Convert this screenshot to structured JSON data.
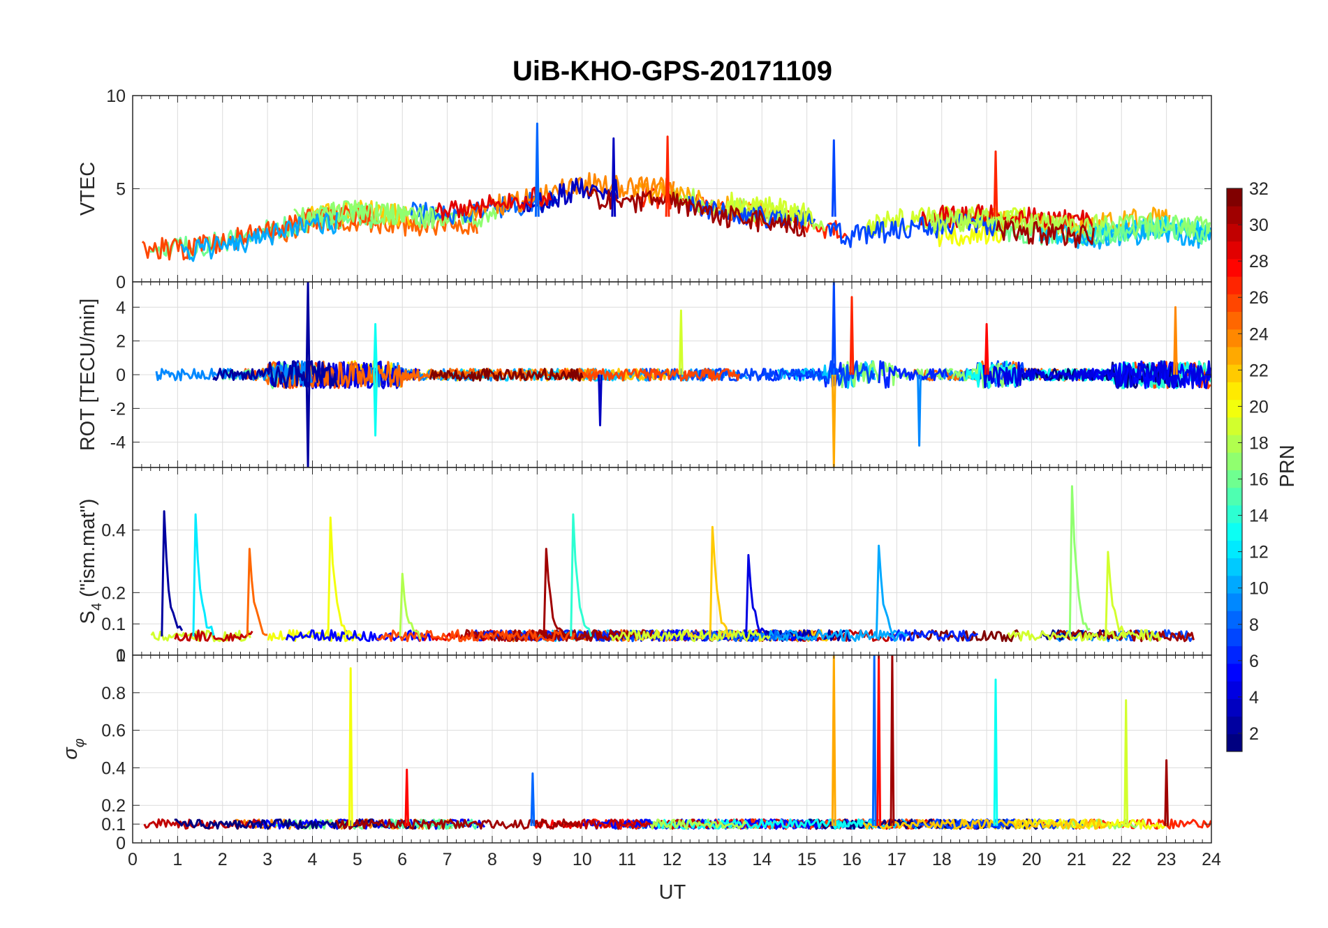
{
  "figure": {
    "title": "UiB-KHO-GPS-20171109",
    "xlabel": "UT"
  },
  "colorbar": {
    "label": "PRN",
    "range": [
      1,
      32
    ],
    "ticks": [
      "2",
      "4",
      "6",
      "8",
      "10",
      "12",
      "14",
      "16",
      "18",
      "20",
      "22",
      "24",
      "26",
      "28",
      "30",
      "32"
    ],
    "colormap": "jet"
  },
  "chart_data": [
    {
      "type": "line",
      "panel": "VTEC",
      "ylabel": "VTEC",
      "xlim": [
        0,
        24
      ],
      "ylim": [
        0,
        10
      ],
      "yticks": [
        "0",
        "5",
        "10"
      ],
      "xticks": [
        "0",
        "1",
        "2",
        "3",
        "4",
        "5",
        "6",
        "7",
        "8",
        "9",
        "10",
        "11",
        "12",
        "13",
        "14",
        "15",
        "16",
        "17",
        "18",
        "19",
        "20",
        "21",
        "22",
        "23",
        "24"
      ],
      "grid": true,
      "series_note_colors": "one line per satellite PRN 1-32, coloured by PRN",
      "envelope_x": [
        0,
        1,
        2,
        3,
        4,
        5,
        6,
        7,
        8,
        9,
        10,
        11,
        12,
        13,
        14,
        15,
        16,
        17,
        18,
        19,
        20,
        21,
        22,
        23,
        24
      ],
      "envelope_y": [
        2.2,
        2.0,
        2.4,
        3.0,
        3.6,
        3.8,
        3.6,
        3.4,
        3.6,
        4.0,
        4.8,
        4.6,
        4.5,
        3.8,
        3.5,
        3.2,
        2.4,
        2.8,
        3.0,
        3.1,
        2.9,
        2.7,
        3.0,
        3.2,
        2.8
      ],
      "peaks": [
        {
          "x": 9.0,
          "y": 8.5,
          "prn": 8
        },
        {
          "x": 10.7,
          "y": 7.7,
          "prn": 3
        },
        {
          "x": 11.9,
          "y": 7.8,
          "prn": 27
        },
        {
          "x": 15.6,
          "y": 7.6,
          "prn": 7
        },
        {
          "x": 19.2,
          "y": 7.0,
          "prn": 27
        }
      ]
    },
    {
      "type": "line",
      "panel": "ROT",
      "ylabel": "ROT [TECU/min]",
      "xlim": [
        0,
        24
      ],
      "ylim": [
        -5.5,
        5.5
      ],
      "yticks": [
        "-4",
        "-2",
        "0",
        "2",
        "4"
      ],
      "grid": true,
      "spikes": [
        {
          "x": 3.9,
          "y": 5.5,
          "prn": 2
        },
        {
          "x": 3.9,
          "y": -5.5,
          "prn": 2
        },
        {
          "x": 5.4,
          "y": 3.0,
          "prn": 13
        },
        {
          "x": 5.4,
          "y": -3.6,
          "prn": 13
        },
        {
          "x": 10.4,
          "y": -3.0,
          "prn": 3
        },
        {
          "x": 12.2,
          "y": 3.8,
          "prn": 19
        },
        {
          "x": 15.6,
          "y": 5.5,
          "prn": 7
        },
        {
          "x": 15.6,
          "y": -5.5,
          "prn": 23
        },
        {
          "x": 16.0,
          "y": 4.6,
          "prn": 27
        },
        {
          "x": 17.5,
          "y": -4.2,
          "prn": 9
        },
        {
          "x": 19.0,
          "y": 3.0,
          "prn": 28
        },
        {
          "x": 23.2,
          "y": 4.0,
          "prn": 24
        }
      ]
    },
    {
      "type": "line",
      "panel": "S4",
      "ylabel": "S4 (\"ism.mat\")",
      "ylabel_main": "S",
      "ylabel_sub": "4",
      "ylabel_tail": " (\"ism.mat\")",
      "xlim": [
        0,
        24
      ],
      "ylim": [
        0,
        0.6
      ],
      "yticks": [
        "0",
        "0.1",
        "0.2",
        "0.4"
      ],
      "grid": true,
      "peaks": [
        {
          "x": 0.7,
          "y": 0.46,
          "prn": 2
        },
        {
          "x": 1.4,
          "y": 0.45,
          "prn": 12
        },
        {
          "x": 2.6,
          "y": 0.34,
          "prn": 25
        },
        {
          "x": 4.4,
          "y": 0.44,
          "prn": 20
        },
        {
          "x": 6.0,
          "y": 0.26,
          "prn": 18
        },
        {
          "x": 9.2,
          "y": 0.34,
          "prn": 31
        },
        {
          "x": 9.8,
          "y": 0.45,
          "prn": 14
        },
        {
          "x": 12.9,
          "y": 0.41,
          "prn": 22
        },
        {
          "x": 13.7,
          "y": 0.32,
          "prn": 4
        },
        {
          "x": 16.6,
          "y": 0.35,
          "prn": 10
        },
        {
          "x": 20.9,
          "y": 0.54,
          "prn": 17
        },
        {
          "x": 21.7,
          "y": 0.33,
          "prn": 19
        }
      ]
    },
    {
      "type": "line",
      "panel": "sigma_phi",
      "ylabel": "σφ",
      "ylabel_main": "σ",
      "ylabel_sub": "φ",
      "xlim": [
        0,
        24
      ],
      "ylim": [
        0,
        1
      ],
      "yticks": [
        "0",
        "0.1",
        "0.2",
        "0.4",
        "0.6",
        "0.8",
        "1"
      ],
      "grid": true,
      "spikes": [
        {
          "x": 4.85,
          "y": 0.93,
          "prn": 20
        },
        {
          "x": 6.1,
          "y": 0.39,
          "prn": 28
        },
        {
          "x": 8.9,
          "y": 0.37,
          "prn": 8
        },
        {
          "x": 15.6,
          "y": 1.0,
          "prn": 23
        },
        {
          "x": 16.5,
          "y": 1.0,
          "prn": 8
        },
        {
          "x": 16.6,
          "y": 1.0,
          "prn": 28
        },
        {
          "x": 16.9,
          "y": 1.0,
          "prn": 31
        },
        {
          "x": 19.2,
          "y": 0.87,
          "prn": 13
        },
        {
          "x": 22.1,
          "y": 0.76,
          "prn": 19
        },
        {
          "x": 23.0,
          "y": 0.44,
          "prn": 31
        }
      ]
    }
  ]
}
